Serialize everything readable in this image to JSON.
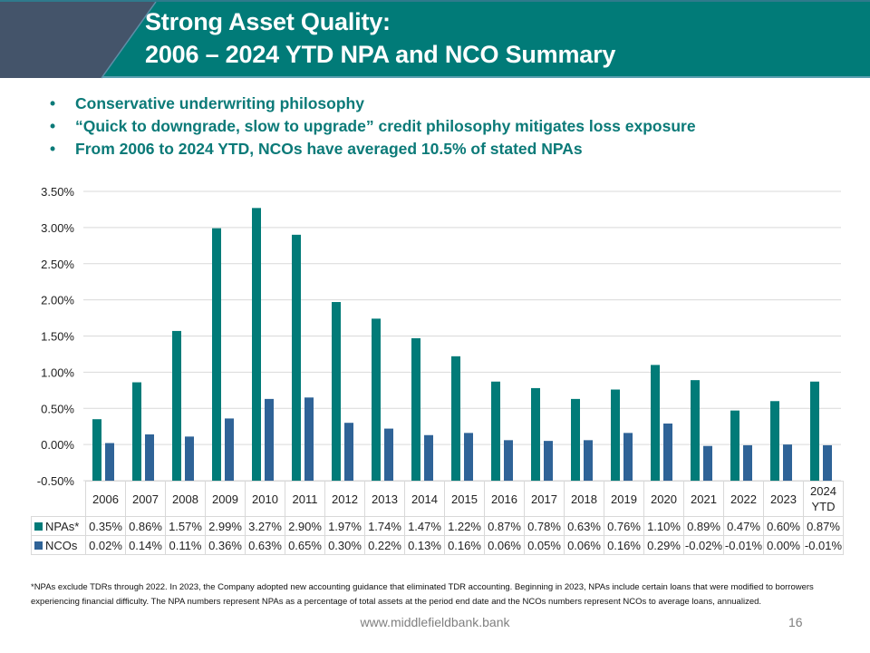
{
  "header": {
    "title_line1": "Strong Asset Quality:",
    "title_line2": "2006 – 2024 YTD NPA and NCO Summary"
  },
  "bullets": [
    "Conservative underwriting philosophy",
    "“Quick to downgrade, slow to upgrade” credit philosophy mitigates loss exposure",
    "From 2006 to 2024 YTD, NCOs have averaged 10.5% of stated NPAs"
  ],
  "colors": {
    "header_bg": "#017b78",
    "header_slant": "#44546a",
    "accent_text": "#0b7a78",
    "npa": "#017b78",
    "nco": "#2f6397"
  },
  "chart_data": {
    "type": "bar",
    "title": "",
    "xlabel": "",
    "ylabel": "",
    "ylim": [
      -0.5,
      3.5
    ],
    "yticks": [
      "-0.50%",
      "0.00%",
      "0.50%",
      "1.00%",
      "1.50%",
      "2.00%",
      "2.50%",
      "3.00%",
      "3.50%"
    ],
    "ytick_values": [
      -0.5,
      0.0,
      0.5,
      1.0,
      1.5,
      2.0,
      2.5,
      3.0,
      3.5
    ],
    "grid": true,
    "legend": "data-table-below",
    "categories": [
      "2006",
      "2007",
      "2008",
      "2009",
      "2010",
      "2011",
      "2012",
      "2013",
      "2014",
      "2015",
      "2016",
      "2017",
      "2018",
      "2019",
      "2020",
      "2021",
      "2022",
      "2023",
      "2024 YTD"
    ],
    "category_lines": [
      [
        "2006"
      ],
      [
        "2007"
      ],
      [
        "2008"
      ],
      [
        "2009"
      ],
      [
        "2010"
      ],
      [
        "2011"
      ],
      [
        "2012"
      ],
      [
        "2013"
      ],
      [
        "2014"
      ],
      [
        "2015"
      ],
      [
        "2016"
      ],
      [
        "2017"
      ],
      [
        "2018"
      ],
      [
        "2019"
      ],
      [
        "2020"
      ],
      [
        "2021"
      ],
      [
        "2022"
      ],
      [
        "2023"
      ],
      [
        "2024",
        "YTD"
      ]
    ],
    "series": [
      {
        "name": "NPAs*",
        "color": "#017b78",
        "values": [
          0.35,
          0.86,
          1.57,
          2.99,
          3.27,
          2.9,
          1.97,
          1.74,
          1.47,
          1.22,
          0.87,
          0.78,
          0.63,
          0.76,
          1.1,
          0.89,
          0.47,
          0.6,
          0.87
        ],
        "labels": [
          "0.35%",
          "0.86%",
          "1.57%",
          "2.99%",
          "3.27%",
          "2.90%",
          "1.97%",
          "1.74%",
          "1.47%",
          "1.22%",
          "0.87%",
          "0.78%",
          "0.63%",
          "0.76%",
          "1.10%",
          "0.89%",
          "0.47%",
          "0.60%",
          "0.87%"
        ]
      },
      {
        "name": "NCOs",
        "color": "#2f6397",
        "values": [
          0.02,
          0.14,
          0.11,
          0.36,
          0.63,
          0.65,
          0.3,
          0.22,
          0.13,
          0.16,
          0.06,
          0.05,
          0.06,
          0.16,
          0.29,
          -0.02,
          -0.01,
          0.0,
          -0.01
        ],
        "labels": [
          "0.02%",
          "0.14%",
          "0.11%",
          "0.36%",
          "0.63%",
          "0.65%",
          "0.30%",
          "0.22%",
          "0.13%",
          "0.16%",
          "0.06%",
          "0.05%",
          "0.06%",
          "0.16%",
          "0.29%",
          "-0.02%",
          "-0.01%",
          "0.00%",
          "-0.01%"
        ]
      }
    ]
  },
  "footnote": "*NPAs exclude TDRs through 2022.  In 2023, the Company adopted new accounting guidance that eliminated TDR accounting. Beginning in 2023, NPAs include certain loans that were modified to borrowers experiencing financial difficulty. The NPA numbers represent NPAs as a percentage of total assets at the period end date and the NCOs numbers represent NCOs to average loans, annualized.",
  "footer": {
    "url": "www.middlefieldbank.bank",
    "page_number": "16"
  }
}
